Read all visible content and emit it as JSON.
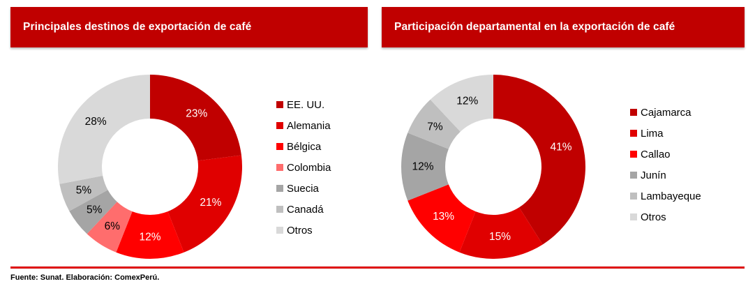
{
  "page": {
    "background": "#ffffff",
    "accent_red": "#c00000",
    "source_note": "Fuente: Sunat. Elaboración: ComexPerú."
  },
  "chart_data": [
    {
      "type": "pie",
      "donut": true,
      "title": "Principales destinos de exportación de café",
      "unit": "%",
      "legend_position": "right",
      "start_angle_deg": 0,
      "direction": "clockwise",
      "slices": [
        {
          "label": "EE. UU.",
          "value": 23,
          "pct_label": "23%",
          "color": "#c00000",
          "label_color": "#ffffff"
        },
        {
          "label": "Alemania",
          "value": 21,
          "pct_label": "21%",
          "color": "#e00000",
          "label_color": "#ffffff"
        },
        {
          "label": "Bélgica",
          "value": 12,
          "pct_label": "12%",
          "color": "#ff0000",
          "label_color": "#ffffff"
        },
        {
          "label": "Colombia",
          "value": 6,
          "pct_label": "6%",
          "color": "#ff6d6d",
          "label_color": "#000000"
        },
        {
          "label": "Suecia",
          "value": 5,
          "pct_label": "5%",
          "color": "#a5a5a5",
          "label_color": "#000000"
        },
        {
          "label": "Canadá",
          "value": 5,
          "pct_label": "5%",
          "color": "#bfbfbf",
          "label_color": "#000000"
        },
        {
          "label": "Otros",
          "value": 28,
          "pct_label": "28%",
          "color": "#d9d9d9",
          "label_color": "#000000"
        }
      ]
    },
    {
      "type": "pie",
      "donut": true,
      "title": "Participación departamental en la exportación de café",
      "unit": "%",
      "legend_position": "right",
      "start_angle_deg": 0,
      "direction": "clockwise",
      "slices": [
        {
          "label": "Cajamarca",
          "value": 41,
          "pct_label": "41%",
          "color": "#c00000",
          "label_color": "#ffffff"
        },
        {
          "label": "Lima",
          "value": 15,
          "pct_label": "15%",
          "color": "#e00000",
          "label_color": "#ffffff"
        },
        {
          "label": "Callao",
          "value": 13,
          "pct_label": "13%",
          "color": "#ff0000",
          "label_color": "#ffffff"
        },
        {
          "label": "Junín",
          "value": 12,
          "pct_label": "12%",
          "color": "#a5a5a5",
          "label_color": "#000000"
        },
        {
          "label": "Lambayeque",
          "value": 7,
          "pct_label": "7%",
          "color": "#bfbfbf",
          "label_color": "#000000"
        },
        {
          "label": "Otros",
          "value": 12,
          "pct_label": "12%",
          "color": "#d9d9d9",
          "label_color": "#000000"
        }
      ]
    }
  ]
}
